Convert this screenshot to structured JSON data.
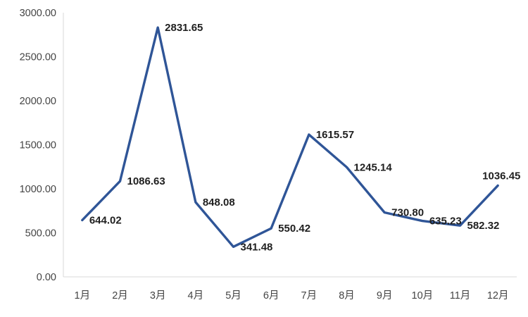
{
  "chart_data": {
    "type": "line",
    "title": "",
    "xlabel": "",
    "ylabel": "",
    "categories": [
      "1月",
      "2月",
      "3月",
      "4月",
      "5月",
      "6月",
      "7月",
      "8月",
      "9月",
      "10月",
      "11月",
      "12月"
    ],
    "values": [
      644.02,
      1086.63,
      2831.65,
      848.08,
      341.48,
      550.42,
      1615.57,
      1245.14,
      730.8,
      635.23,
      582.32,
      1036.45
    ],
    "labels": [
      "644.02",
      "1086.63",
      "2831.65",
      "848.08",
      "341.48",
      "550.42",
      "1615.57",
      "1245.14",
      "730.80",
      "635.23",
      "582.32",
      "1036.45"
    ],
    "ylim": [
      0,
      3000
    ],
    "yticks": [
      "0.00",
      "500.00",
      "1000.00",
      "1500.00",
      "2000.00",
      "2500.00",
      "3000.00"
    ],
    "grid": false,
    "legend": "none",
    "colors": {
      "line": "#2F5597",
      "axis_line": "#D9D9D9",
      "tick_text": "#444444",
      "label_text": "#1F1F1F",
      "background": "#FFFFFF"
    }
  }
}
